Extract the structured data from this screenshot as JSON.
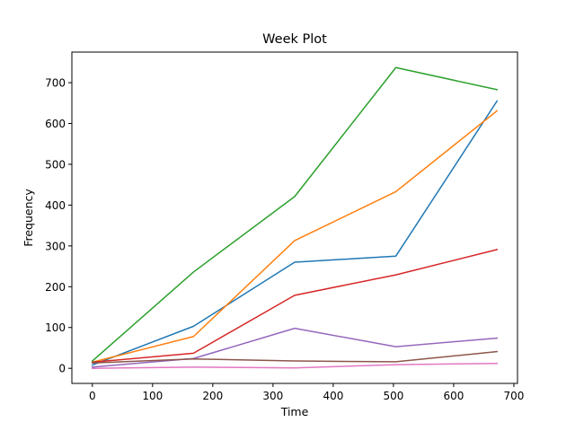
{
  "chart_data": {
    "type": "line",
    "title": "Week Plot",
    "xlabel": "Time",
    "ylabel": "Frequency",
    "xlim": [
      -34,
      706
    ],
    "ylim": [
      -37,
      775
    ],
    "xticks": [
      0,
      100,
      200,
      300,
      400,
      500,
      600,
      700
    ],
    "yticks": [
      0,
      100,
      200,
      300,
      400,
      500,
      600,
      700
    ],
    "grid": false,
    "x": [
      0,
      168,
      336,
      504,
      672
    ],
    "series": [
      {
        "color": "#1f77b4",
        "values": [
          8,
          103,
          260,
          275,
          655
        ]
      },
      {
        "color": "#ff7f0e",
        "values": [
          15,
          78,
          313,
          433,
          631
        ]
      },
      {
        "color": "#2ca02c",
        "values": [
          18,
          236,
          421,
          737,
          683
        ]
      },
      {
        "color": "#d62728",
        "values": [
          15,
          37,
          179,
          229,
          291
        ]
      },
      {
        "color": "#9467bd",
        "values": [
          3,
          24,
          98,
          53,
          74
        ]
      },
      {
        "color": "#8c564b",
        "values": [
          13,
          23,
          18,
          16,
          41
        ]
      },
      {
        "color": "#e377c2",
        "values": [
          0,
          3,
          1,
          9,
          12
        ]
      }
    ]
  }
}
